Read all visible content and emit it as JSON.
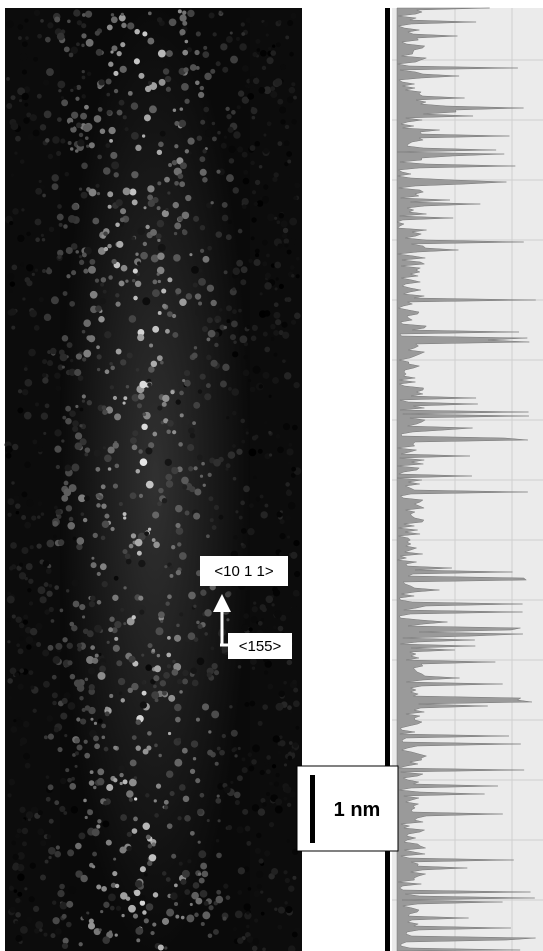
{
  "annotations": {
    "direction_up": "<10 1 1>",
    "direction_right": "<155>",
    "scale_bar": "1 nm"
  }
}
